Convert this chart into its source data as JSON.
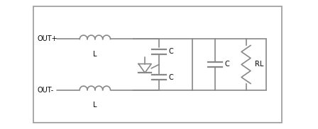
{
  "bg_color": "#ffffff",
  "border_color": "#aaaaaa",
  "line_color": "#888888",
  "text_color": "#000000",
  "figsize": [
    4.48,
    1.83
  ],
  "dpi": 100,
  "labels": {
    "out_plus": "OUT+",
    "out_minus": "OUT-",
    "L_top": "L",
    "L_bot": "L",
    "C_top": "C",
    "C_mid": "C",
    "C_right": "C",
    "RL": "RL"
  }
}
